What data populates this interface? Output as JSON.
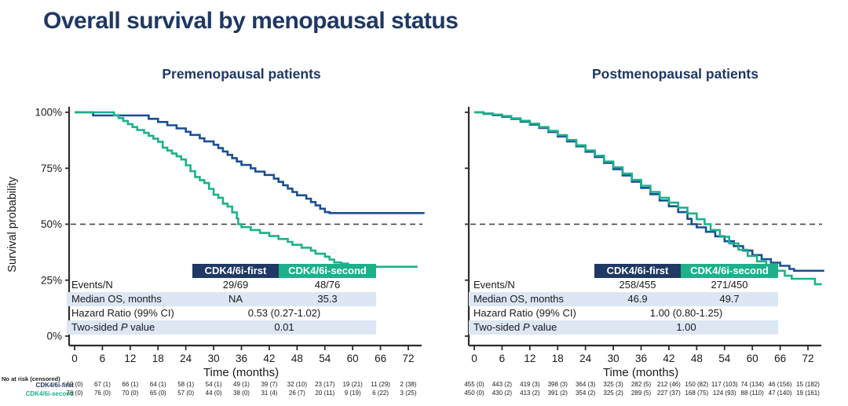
{
  "slide_title": "Overall survival by menopausal status",
  "colors": {
    "navy": "#1F3864",
    "curve_first": "#1A4F94",
    "curve_second": "#1CB18A",
    "row_shade": "#DCE6F4",
    "axis": "#2d2d2d"
  },
  "series_labels": {
    "first": "CDK4/6i-first",
    "second": "CDK4/6i-second"
  },
  "at_risk_header": "No at risk (censored)",
  "panels": [
    {
      "title": "Premenopausal patients",
      "xlabel": "Time (months)",
      "ylabel": "Survival probability",
      "x_ticks": [
        0,
        6,
        12,
        18,
        24,
        30,
        36,
        42,
        48,
        54,
        60,
        66,
        72
      ],
      "y_tick_labels": [
        "100%",
        "75%",
        "50%",
        "25%",
        "0%"
      ],
      "stats": {
        "col1_header": "CDK4/6i-first",
        "col2_header": "CDK4/6i-second",
        "rows": [
          {
            "label": "Events/N",
            "v1": "29/69",
            "v2": "48/76"
          },
          {
            "label": "Median OS, months",
            "v1": "NA",
            "v2": "35.3"
          },
          {
            "label": "Hazard Ratio (99% CI)",
            "value": "0.53 (0.27-1.02)"
          },
          {
            "label_pre": "Two-sided ",
            "label_italic": "P",
            "label_post": " value",
            "value": "0.01"
          }
        ]
      },
      "at_risk": {
        "first": [
          "69 (0)",
          "67 (1)",
          "66 (1)",
          "64 (1)",
          "58 (1)",
          "54 (1)",
          "49 (1)",
          "39 (7)",
          "32 (10)",
          "23 (17)",
          "19 (21)",
          "11 (29)",
          "2 (38)"
        ],
        "second": [
          "76 (0)",
          "76 (0)",
          "70 (0)",
          "65 (0)",
          "57 (0)",
          "44 (0)",
          "38 (0)",
          "31 (4)",
          "26 (7)",
          "20 (11)",
          "9 (19)",
          "6 (22)",
          "3 (25)"
        ]
      }
    },
    {
      "title": "Postmenopausal patients",
      "xlabel": "Time (months)",
      "x_ticks": [
        0,
        6,
        12,
        18,
        24,
        30,
        36,
        42,
        48,
        54,
        60,
        66,
        72
      ],
      "stats": {
        "col1_header": "CDK4/6i-first",
        "col2_header": "CDK4/6i-second",
        "rows": [
          {
            "label": "Events/N",
            "v1": "258/455",
            "v2": "271/450"
          },
          {
            "label": "Median OS, months",
            "v1": "46.9",
            "v2": "49.7"
          },
          {
            "label": "Hazard Ratio (99% CI)",
            "value": "1.00 (0.80-1.25)"
          },
          {
            "label_pre": "Two-sided ",
            "label_italic": "P",
            "label_post": " value",
            "value": "1.00"
          }
        ]
      },
      "at_risk": {
        "first": [
          "455 (0)",
          "443 (2)",
          "419 (3)",
          "398 (3)",
          "364 (3)",
          "325 (3)",
          "282 (5)",
          "212 (46)",
          "150 (82)",
          "117 (103)",
          "74 (134)",
          "46 (156)",
          "15 (182)"
        ],
        "second": [
          "450 (0)",
          "430 (2)",
          "413 (2)",
          "391 (2)",
          "354 (2)",
          "325 (2)",
          "289 (5)",
          "227 (37)",
          "168 (75)",
          "124 (93)",
          "88 (110)",
          "47 (140)",
          "19 (161)"
        ]
      }
    }
  ],
  "chart_data": [
    {
      "type": "line",
      "title": "Premenopausal patients",
      "xlabel": "Time (months)",
      "ylabel": "Survival probability",
      "xlim": [
        0,
        76
      ],
      "ylim": [
        0,
        100
      ],
      "x_ticks": [
        0,
        6,
        12,
        18,
        24,
        30,
        36,
        42,
        48,
        54,
        60,
        66,
        72
      ],
      "y_ticks_pct": [
        0,
        25,
        50,
        75,
        100
      ],
      "reference_line_y": 50,
      "grid": false,
      "curve_style": "km-step",
      "series": [
        {
          "name": "CDK4/6i-first",
          "color": "#1A4F94",
          "points": [
            [
              0,
              100
            ],
            [
              4,
              98.6
            ],
            [
              16,
              97.1
            ],
            [
              18,
              95.7
            ],
            [
              20,
              94.2
            ],
            [
              22,
              92.8
            ],
            [
              24,
              91.3
            ],
            [
              25,
              89.9
            ],
            [
              27,
              88.4
            ],
            [
              28,
              87
            ],
            [
              30,
              85.5
            ],
            [
              31,
              84
            ],
            [
              32,
              82.5
            ],
            [
              33,
              81
            ],
            [
              34,
              79.5
            ],
            [
              35,
              78
            ],
            [
              36,
              76.5
            ],
            [
              38,
              75
            ],
            [
              39,
              73.5
            ],
            [
              41,
              72
            ],
            [
              43,
              70.4
            ],
            [
              44,
              68.9
            ],
            [
              45,
              67.4
            ],
            [
              46,
              65.9
            ],
            [
              47,
              64.4
            ],
            [
              48,
              62.9
            ],
            [
              50,
              61.4
            ],
            [
              51,
              59.9
            ],
            [
              52,
              58.4
            ],
            [
              53,
              56.9
            ],
            [
              54,
              55.4
            ],
            [
              55,
              55
            ],
            [
              75.5,
              55
            ]
          ]
        },
        {
          "name": "CDK4/6i-second",
          "color": "#1CB18A",
          "points": [
            [
              0,
              100
            ],
            [
              8.5,
              98.7
            ],
            [
              9.5,
              97.4
            ],
            [
              10.5,
              96.1
            ],
            [
              11.5,
              94.7
            ],
            [
              12.5,
              93.4
            ],
            [
              13.5,
              92.1
            ],
            [
              15,
              90.8
            ],
            [
              16,
              89.5
            ],
            [
              17,
              88.2
            ],
            [
              18,
              86.8
            ],
            [
              19,
              84.2
            ],
            [
              20,
              82.9
            ],
            [
              21,
              81.6
            ],
            [
              22,
              80.3
            ],
            [
              23,
              78.9
            ],
            [
              24,
              76.3
            ],
            [
              25,
              73.7
            ],
            [
              26,
              71.1
            ],
            [
              27,
              69.7
            ],
            [
              28,
              68.4
            ],
            [
              29,
              65.8
            ],
            [
              30,
              63.2
            ],
            [
              31,
              61.8
            ],
            [
              32,
              59.2
            ],
            [
              33,
              57.9
            ],
            [
              34,
              55.3
            ],
            [
              35,
              52.6
            ],
            [
              35.3,
              50
            ],
            [
              36,
              48.7
            ],
            [
              38,
              47.4
            ],
            [
              40,
              46.1
            ],
            [
              42,
              44.7
            ],
            [
              44,
              43.4
            ],
            [
              46,
              42.1
            ],
            [
              47,
              40.8
            ],
            [
              49,
              39.5
            ],
            [
              51,
              38.2
            ],
            [
              52,
              36.8
            ],
            [
              54,
              35.5
            ],
            [
              55,
              34.2
            ],
            [
              56,
              32.9
            ],
            [
              57.5,
              32.4
            ],
            [
              59,
              31
            ],
            [
              74,
              31
            ]
          ]
        }
      ]
    },
    {
      "type": "line",
      "title": "Postmenopausal patients",
      "xlabel": "Time (months)",
      "xlim": [
        0,
        76
      ],
      "ylim": [
        0,
        100
      ],
      "x_ticks": [
        0,
        6,
        12,
        18,
        24,
        30,
        36,
        42,
        48,
        54,
        60,
        66,
        72
      ],
      "y_ticks_pct": [
        0,
        25,
        50,
        75,
        100
      ],
      "reference_line_y": 50,
      "grid": false,
      "curve_style": "km-step",
      "series": [
        {
          "name": "CDK4/6i-first",
          "color": "#1A4F94",
          "points": [
            [
              0,
              100
            ],
            [
              2,
              99.3
            ],
            [
              4,
              98.7
            ],
            [
              6,
              98
            ],
            [
              8,
              97
            ],
            [
              10,
              95.8
            ],
            [
              12,
              94.5
            ],
            [
              14,
              93
            ],
            [
              16,
              91.2
            ],
            [
              18,
              89.2
            ],
            [
              20,
              87
            ],
            [
              22,
              84.8
            ],
            [
              24,
              82.4
            ],
            [
              26,
              80
            ],
            [
              28,
              77.4
            ],
            [
              30,
              74.6
            ],
            [
              32,
              71.8
            ],
            [
              34,
              69
            ],
            [
              36,
              66.2
            ],
            [
              38,
              63.4
            ],
            [
              40,
              60.6
            ],
            [
              42,
              58
            ],
            [
              44,
              55.4
            ],
            [
              46,
              52.4
            ],
            [
              46.9,
              50
            ],
            [
              48,
              48.6
            ],
            [
              50,
              46.6
            ],
            [
              52,
              44.6
            ],
            [
              54,
              42.4
            ],
            [
              56,
              40.2
            ],
            [
              58,
              38.2
            ],
            [
              60,
              36.2
            ],
            [
              62,
              34.4
            ],
            [
              64,
              32.8
            ],
            [
              66,
              31.4
            ],
            [
              68,
              30
            ],
            [
              69,
              29.2
            ],
            [
              75.5,
              29.2
            ]
          ]
        },
        {
          "name": "CDK4/6i-second",
          "color": "#1CB18A",
          "points": [
            [
              0,
              100
            ],
            [
              2,
              99.5
            ],
            [
              4,
              99
            ],
            [
              6,
              98.3
            ],
            [
              8,
              97.3
            ],
            [
              10,
              96.2
            ],
            [
              12,
              94.9
            ],
            [
              14,
              93.4
            ],
            [
              16,
              91.7
            ],
            [
              18,
              89.8
            ],
            [
              20,
              87.6
            ],
            [
              22,
              85.3
            ],
            [
              24,
              83
            ],
            [
              26,
              80.6
            ],
            [
              28,
              78
            ],
            [
              30,
              75.4
            ],
            [
              32,
              72.6
            ],
            [
              34,
              69.8
            ],
            [
              36,
              67.2
            ],
            [
              38,
              64.4
            ],
            [
              40,
              61.8
            ],
            [
              42,
              59.6
            ],
            [
              44,
              57.4
            ],
            [
              46,
              54.8
            ],
            [
              48,
              52.2
            ],
            [
              49.7,
              50
            ],
            [
              51,
              47.4
            ],
            [
              53,
              44.4
            ],
            [
              55,
              41.4
            ],
            [
              57,
              38.6
            ],
            [
              59,
              35.8
            ],
            [
              61,
              33.4
            ],
            [
              63,
              31.2
            ],
            [
              65,
              29.2
            ],
            [
              67,
              27
            ],
            [
              68.5,
              25.6
            ],
            [
              73,
              25.6
            ],
            [
              73.5,
              23.2
            ],
            [
              75,
              23.2
            ]
          ]
        }
      ]
    }
  ]
}
